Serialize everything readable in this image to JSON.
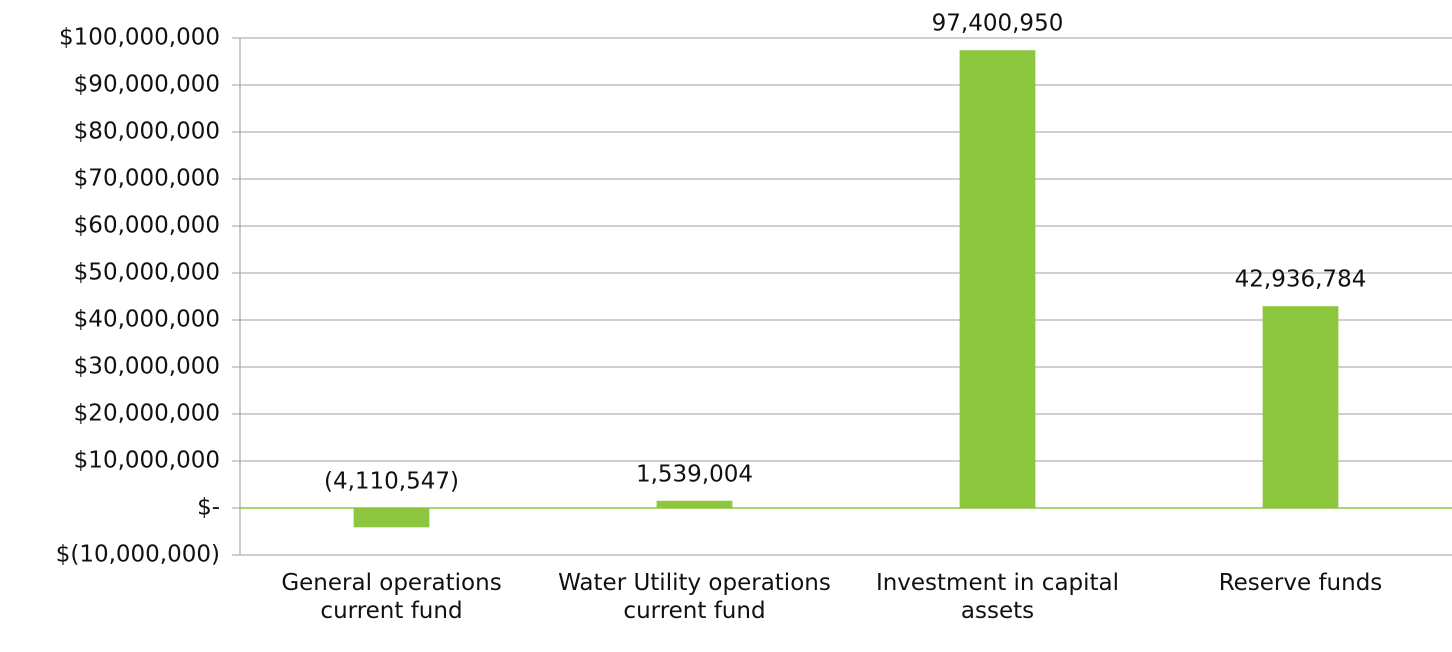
{
  "chart_data": {
    "type": "bar",
    "categories": [
      "General operations current fund",
      "Water Utility operations current fund",
      "Investment in capital assets",
      "Reserve funds"
    ],
    "values": [
      -4110547,
      1539004,
      97400950,
      42936784
    ],
    "value_labels": [
      "(4,110,547)",
      "1,539,004",
      "97,400,950",
      "42,936,784"
    ],
    "color": "#8dc63f",
    "ylim": [
      -10000000,
      100000000
    ],
    "yticks": [
      {
        "value": -10000000,
        "label": "$(10,000,000)"
      },
      {
        "value": 0,
        "label": "$-"
      },
      {
        "value": 10000000,
        "label": "$10,000,000"
      },
      {
        "value": 20000000,
        "label": "$20,000,000"
      },
      {
        "value": 30000000,
        "label": "$30,000,000"
      },
      {
        "value": 40000000,
        "label": "$40,000,000"
      },
      {
        "value": 50000000,
        "label": "$50,000,000"
      },
      {
        "value": 60000000,
        "label": "$60,000,000"
      },
      {
        "value": 70000000,
        "label": "$70,000,000"
      },
      {
        "value": 80000000,
        "label": "$80,000,000"
      },
      {
        "value": 90000000,
        "label": "$90,000,000"
      },
      {
        "value": 100000000,
        "label": "$100,000,000"
      }
    ],
    "grid": true
  }
}
